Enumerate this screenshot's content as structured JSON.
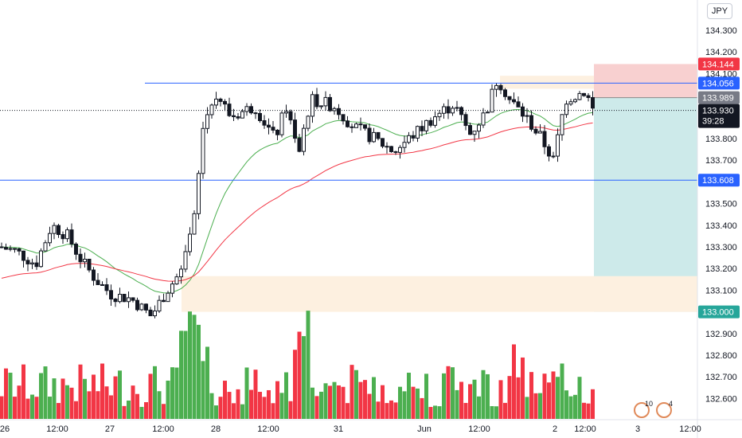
{
  "chart_data": {
    "type": "candlestick",
    "currency": "JPY",
    "y_axis": {
      "ticks": [
        "134.300",
        "134.200",
        "134.100",
        "133.800",
        "133.700",
        "133.500",
        "133.400",
        "133.300",
        "133.200",
        "133.100",
        "132.900",
        "132.800",
        "132.700",
        "132.600"
      ],
      "tick_values": [
        134.3,
        134.2,
        134.1,
        133.8,
        133.7,
        133.5,
        133.4,
        133.3,
        133.2,
        133.1,
        132.9,
        132.8,
        132.7,
        132.6
      ],
      "range": [
        132.55,
        134.4
      ]
    },
    "x_axis": {
      "ticks": [
        "26",
        "12:00",
        "27",
        "12:00",
        "28",
        "12:00",
        "31",
        "Jun",
        "12:00",
        "2",
        "12:00",
        "3",
        "12:00"
      ]
    },
    "price_labels": {
      "stop": "134.144",
      "resistance": "134.056",
      "entry": "133.989",
      "last": "133.930",
      "countdown": "39:28",
      "support": "133.608",
      "target": "133.000"
    },
    "levels": {
      "resistance": 134.056,
      "support": 133.608,
      "last": 133.93,
      "entry": 133.989,
      "stop": 134.144,
      "target": 133.0
    },
    "colors": {
      "up": "#4caf50",
      "down": "#f23645",
      "candle": "#131722",
      "level_line": "#2962ff",
      "ema_fast": "#4caf50",
      "ema_slow": "#f23645",
      "stop_zone": "#f8d0d0",
      "profit_zone": "#cdeaea",
      "demand_zone": "#fdf0e0"
    },
    "indicators": [
      {
        "name": "indicator-1",
        "count": "10"
      },
      {
        "name": "indicator-2",
        "count": "4"
      }
    ]
  }
}
